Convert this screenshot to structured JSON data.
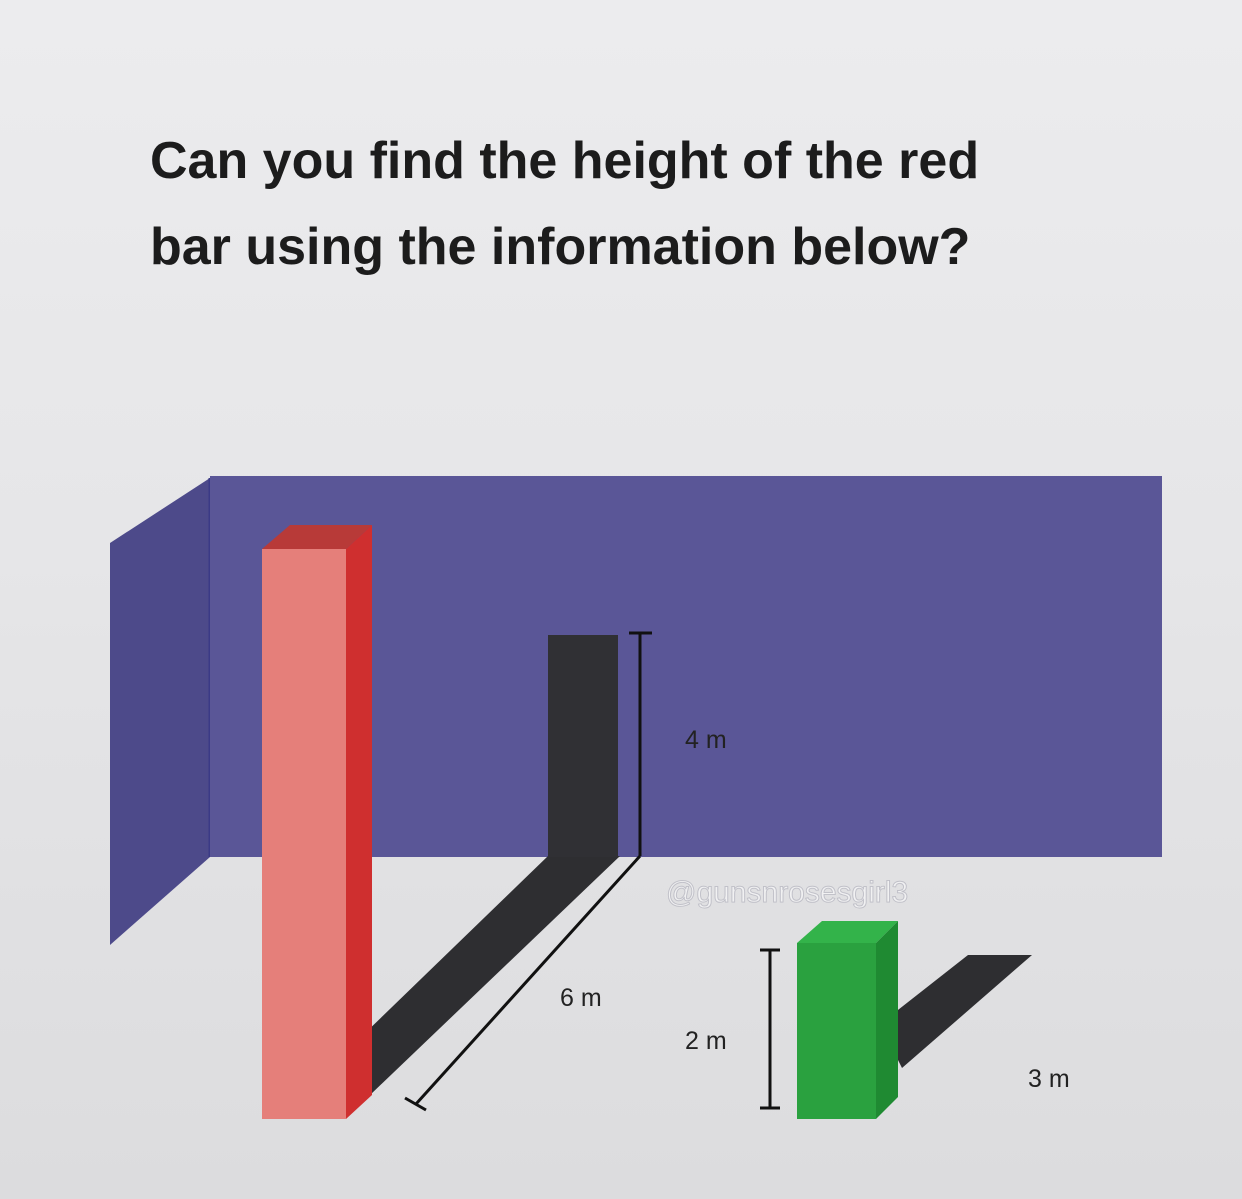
{
  "title": {
    "line1": "Can you find the height of the red",
    "line2": "bar using the information below?"
  },
  "labels": {
    "black_bar_height": "4 m",
    "black_shadow_length": "6 m",
    "green_bar_height": "2 m",
    "green_shadow_length": "3 m"
  },
  "watermark": "@gunsnrosesgirl3",
  "colors": {
    "wall": "#5a5697",
    "red_bar_front": "#e57f7a",
    "red_bar_side": "#cf2f2f",
    "green_bar_front": "#2aa13f",
    "green_bar_side": "#1f8a32",
    "black_bar": "#303034",
    "shadow": "#2e2e31"
  }
}
